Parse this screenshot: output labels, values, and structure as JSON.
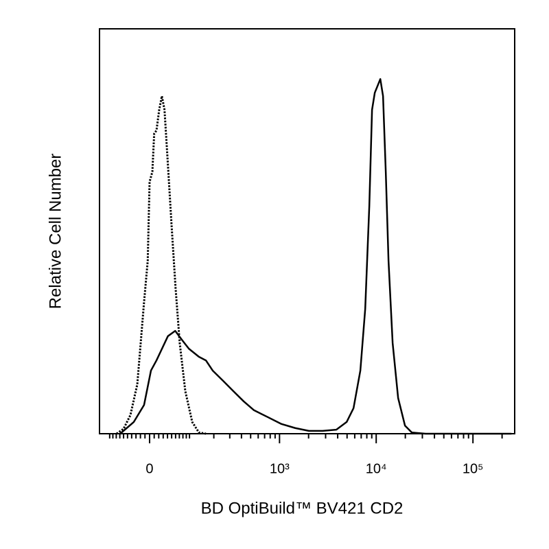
{
  "chart_data": {
    "type": "line",
    "xlabel": "BD OptiBuild™ BV421 CD2",
    "ylabel": "Relative Cell Number",
    "xscale": "biexponential",
    "xlim": [
      -136,
      270000
    ],
    "ylim": [
      0,
      100
    ],
    "xticks": [
      0,
      {
        "value": 1000,
        "label": "10³"
      },
      {
        "value": 10000,
        "label": "10⁴"
      },
      {
        "value": 100000,
        "label": "10⁵"
      }
    ],
    "xminorticks": [
      -100,
      -90,
      -80,
      -70,
      -60,
      -50,
      -40,
      -30,
      -20,
      -10,
      10,
      20,
      30,
      40,
      50,
      60,
      70,
      80,
      90,
      100,
      200,
      300,
      400,
      500,
      600,
      700,
      800,
      900,
      2000,
      3000,
      4000,
      5000,
      6000,
      7000,
      8000,
      9000,
      20000,
      30000,
      40000,
      50000,
      60000,
      70000,
      80000,
      90000,
      200000
    ],
    "grid": false,
    "series": [
      {
        "color": "#000000",
        "style": "dotted",
        "x": [
          -79,
          -60,
          -43,
          -27,
          -12,
          -4,
          0,
          6,
          10,
          15,
          21,
          27,
          33,
          40,
          50,
          60,
          71,
          87,
          109,
          133,
          162
        ],
        "values": [
          0,
          1.2,
          4.6,
          12.2,
          32.5,
          42.7,
          62.2,
          64.7,
          74.1,
          74.9,
          80,
          83.4,
          80,
          68.1,
          51.2,
          35.9,
          22.4,
          10.5,
          2.9,
          0.3,
          0
        ]
      },
      {
        "color": "#000000",
        "style": "solid",
        "x": [
          -69,
          -35,
          -12,
          3,
          15,
          26,
          41,
          59,
          77,
          98,
          133,
          162,
          194,
          253,
          328,
          422,
          542,
          755,
          1047,
          1453,
          2015,
          2794,
          3874,
          4953,
          5830,
          6860,
          7700,
          8490,
          9060,
          9670,
          10330,
          11030,
          11770,
          12560,
          13410,
          14790,
          16860,
          19840,
          23350,
          32390,
          119800,
          250100
        ],
        "values": [
          0,
          2.9,
          7.1,
          15.6,
          18.1,
          20.7,
          24.1,
          25.4,
          23.2,
          21,
          19,
          18.1,
          15.6,
          13.1,
          10.5,
          8,
          5.8,
          4.1,
          2.4,
          1.4,
          0.7,
          0.7,
          1,
          2.9,
          6.3,
          15.6,
          30.8,
          56.3,
          80,
          84.2,
          85.9,
          87.6,
          83.4,
          64.7,
          42.7,
          22.4,
          8.8,
          2,
          0.3,
          0,
          0,
          0
        ]
      }
    ]
  }
}
